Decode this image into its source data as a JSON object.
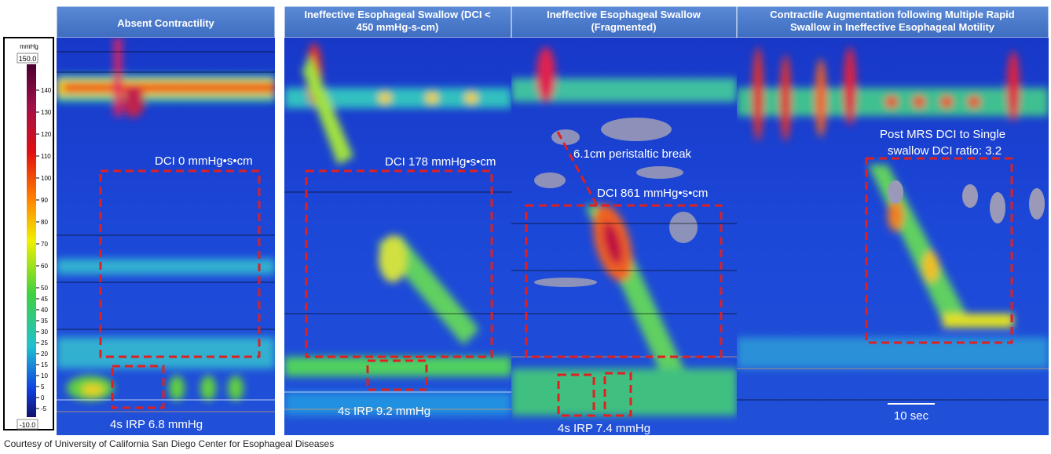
{
  "colorbar": {
    "unit": "mmHg",
    "max": "150.0",
    "min": "-10.0",
    "ticks": [
      140,
      130,
      120,
      110,
      100,
      90,
      80,
      70,
      60,
      50,
      45,
      40,
      35,
      30,
      25,
      20,
      15,
      10,
      5,
      0,
      -5
    ]
  },
  "panels": [
    {
      "title": "Absent Contractility",
      "annotations": [
        "DCI 0 mmHg•s•cm",
        "4s IRP 6.8 mmHg"
      ]
    },
    {
      "title": "Ineffective Esophageal Swallow (DCI < 450 mmHg-s-cm)",
      "annotations": [
        "DCI 178 mmHg•s•cm",
        "4s IRP 9.2 mmHg"
      ]
    },
    {
      "title": "Ineffective Esophageal Swallow (Fragmented)",
      "annotations": [
        "6.1cm peristaltic break",
        "DCI 861 mmHg•s•cm",
        "4s IRP 7.4 mmHg"
      ]
    },
    {
      "title": "Contractile Augmentation following Multiple Rapid Swallow in Ineffective Esophageal Motility",
      "annotations": [
        "Post MRS DCI to Single",
        "swallow DCI ratio: 3.2",
        "10 sec"
      ]
    }
  ],
  "footer": "Courtesy of University of California San Diego Center for Esophageal Diseases"
}
